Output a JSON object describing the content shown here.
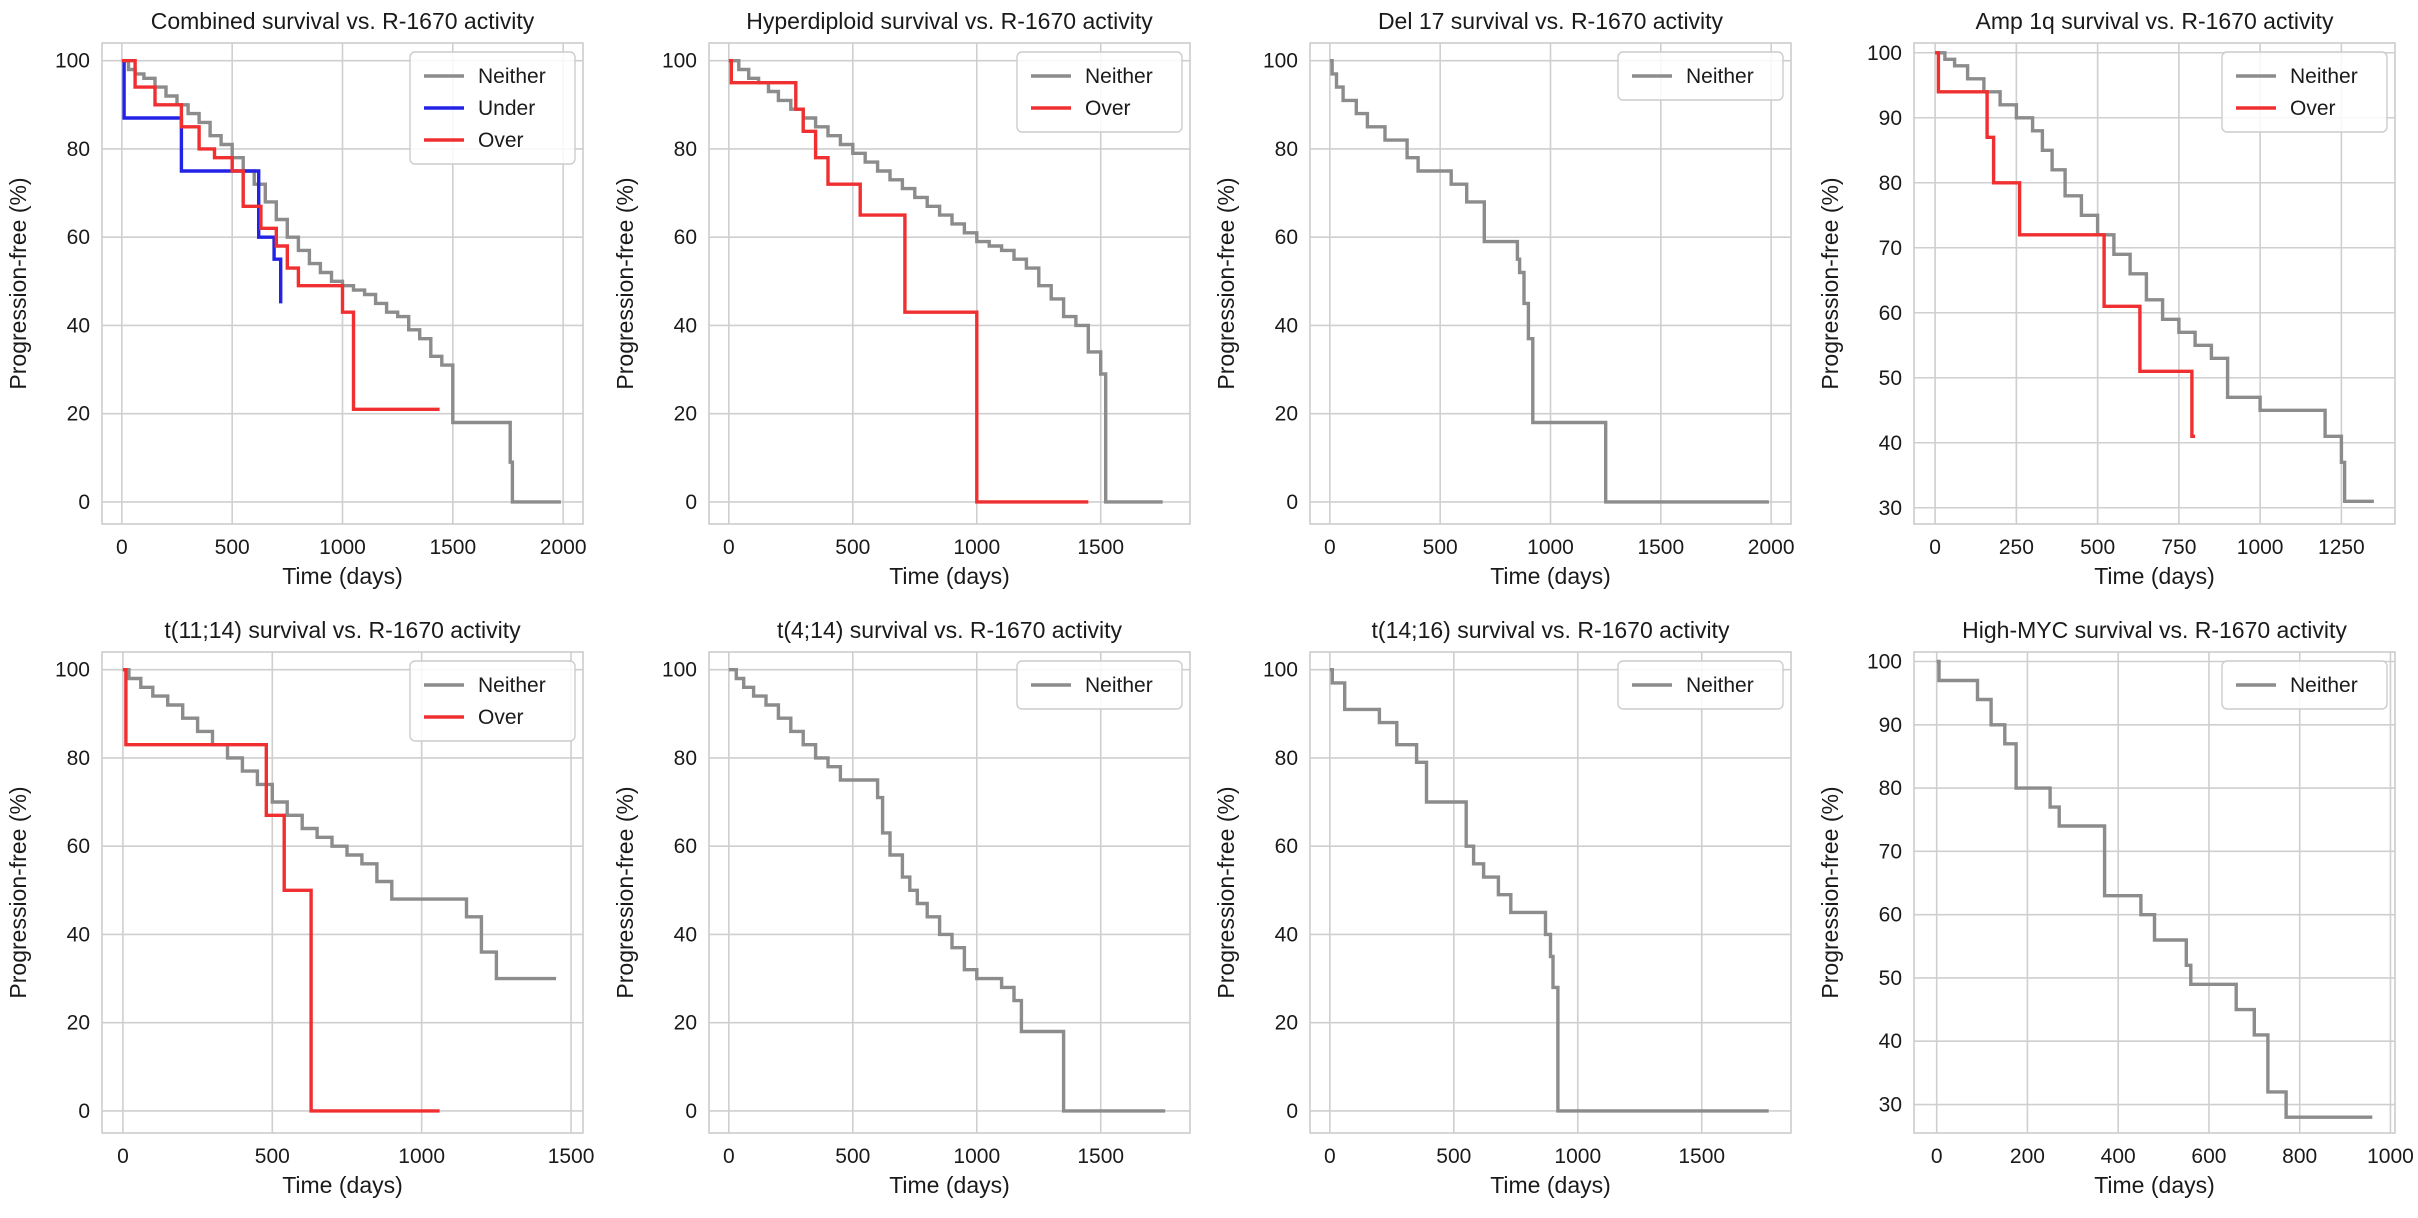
{
  "colors": {
    "Neither": "#8c8c8c",
    "Under": "#2323e6",
    "Over": "#f03030"
  },
  "chart_data": [
    {
      "type": "line",
      "title": "Combined survival vs. R-1670 activity",
      "xlabel": "Time (days)",
      "ylabel": "Progression-free (%)",
      "xlim": [
        -90,
        2090
      ],
      "ylim": [
        -5,
        104
      ],
      "xticks": [
        "0",
        "500",
        "1000",
        "1500",
        "2000"
      ],
      "xtick_values": [
        0,
        500,
        1000,
        1500,
        2000
      ],
      "yticks": [
        "0",
        "20",
        "40",
        "60",
        "80",
        "100"
      ],
      "ytick_values": [
        0,
        20,
        40,
        60,
        80,
        100
      ],
      "legend": "top-right",
      "series": [
        {
          "name": "Neither",
          "x": [
            0,
            30,
            60,
            100,
            150,
            200,
            250,
            300,
            350,
            400,
            450,
            500,
            550,
            600,
            650,
            700,
            750,
            800,
            850,
            900,
            950,
            1000,
            1050,
            1100,
            1150,
            1200,
            1250,
            1300,
            1350,
            1400,
            1450,
            1500,
            1760,
            1770,
            1990
          ],
          "y": [
            100,
            98,
            97,
            96,
            94,
            92,
            90,
            88,
            86,
            83,
            81,
            78,
            75,
            72,
            68,
            64,
            60,
            57,
            54,
            52,
            50,
            49,
            48,
            47,
            45,
            43,
            42,
            39,
            37,
            33,
            31,
            18,
            9,
            0,
            0
          ]
        },
        {
          "name": "Under",
          "x": [
            0,
            10,
            270,
            620,
            690,
            720
          ],
          "y": [
            100,
            87,
            75,
            60,
            55,
            45
          ]
        },
        {
          "name": "Over",
          "x": [
            0,
            60,
            150,
            270,
            350,
            420,
            500,
            550,
            630,
            700,
            750,
            800,
            1000,
            1050,
            1440
          ],
          "y": [
            100,
            94,
            90,
            85,
            80,
            78,
            75,
            67,
            62,
            58,
            53,
            49,
            43,
            21,
            21
          ]
        }
      ]
    },
    {
      "type": "line",
      "title": "Hyperdiploid survival vs. R-1670 activity",
      "xlabel": "Time (days)",
      "ylabel": "Progression-free (%)",
      "xlim": [
        -80,
        1860
      ],
      "ylim": [
        -5,
        104
      ],
      "xticks": [
        "0",
        "500",
        "1000",
        "1500"
      ],
      "xtick_values": [
        0,
        500,
        1000,
        1500
      ],
      "yticks": [
        "0",
        "20",
        "40",
        "60",
        "80",
        "100"
      ],
      "ytick_values": [
        0,
        20,
        40,
        60,
        80,
        100
      ],
      "legend": "top-right",
      "series": [
        {
          "name": "Neither",
          "x": [
            0,
            40,
            80,
            120,
            160,
            200,
            250,
            300,
            350,
            400,
            450,
            500,
            550,
            600,
            650,
            700,
            750,
            800,
            850,
            900,
            950,
            1000,
            1050,
            1100,
            1150,
            1200,
            1250,
            1300,
            1350,
            1400,
            1450,
            1500,
            1520,
            1750
          ],
          "y": [
            100,
            98,
            96,
            95,
            93,
            91,
            89,
            87,
            85,
            83,
            81,
            79,
            77,
            75,
            73,
            71,
            69,
            67,
            65,
            63,
            61,
            59,
            58,
            57,
            55,
            53,
            49,
            46,
            42,
            40,
            34,
            29,
            0,
            0
          ]
        },
        {
          "name": "Over",
          "x": [
            0,
            10,
            270,
            300,
            350,
            400,
            530,
            710,
            1000,
            1450
          ],
          "y": [
            100,
            95,
            89,
            84,
            78,
            72,
            65,
            43,
            0,
            0
          ]
        }
      ]
    },
    {
      "type": "line",
      "title": "Del 17 survival vs. R-1670 activity",
      "xlabel": "Time (days)",
      "ylabel": "Progression-free (%)",
      "xlim": [
        -90,
        2090
      ],
      "ylim": [
        -5,
        104
      ],
      "xticks": [
        "0",
        "500",
        "1000",
        "1500",
        "2000"
      ],
      "xtick_values": [
        0,
        500,
        1000,
        1500,
        2000
      ],
      "yticks": [
        "0",
        "20",
        "40",
        "60",
        "80",
        "100"
      ],
      "ytick_values": [
        0,
        20,
        40,
        60,
        80,
        100
      ],
      "legend": "top-right",
      "series": [
        {
          "name": "Neither",
          "x": [
            0,
            10,
            30,
            60,
            120,
            170,
            250,
            350,
            400,
            550,
            620,
            700,
            850,
            860,
            880,
            900,
            920,
            1250,
            1990
          ],
          "y": [
            100,
            97,
            94,
            91,
            88,
            85,
            82,
            78,
            75,
            72,
            68,
            59,
            55,
            52,
            45,
            37,
            18,
            0,
            0
          ]
        }
      ]
    },
    {
      "type": "line",
      "title": "Amp 1q survival vs. R-1670 activity",
      "xlabel": "Time (days)",
      "ylabel": "Progression-free (%)",
      "xlim": [
        -65,
        1415
      ],
      "ylim": [
        27.5,
        101.5
      ],
      "xticks": [
        "0",
        "250",
        "500",
        "750",
        "1000",
        "1250"
      ],
      "xtick_values": [
        0,
        250,
        500,
        750,
        1000,
        1250
      ],
      "yticks": [
        "30",
        "40",
        "50",
        "60",
        "70",
        "80",
        "90",
        "100"
      ],
      "ytick_values": [
        30,
        40,
        50,
        60,
        70,
        80,
        90,
        100
      ],
      "legend": "top-right",
      "series": [
        {
          "name": "Neither",
          "x": [
            0,
            30,
            60,
            100,
            150,
            200,
            250,
            300,
            330,
            360,
            400,
            450,
            500,
            550,
            600,
            650,
            700,
            750,
            800,
            850,
            900,
            1000,
            1050,
            1200,
            1250,
            1260,
            1350
          ],
          "y": [
            100,
            99,
            98,
            96,
            94,
            92,
            90,
            88,
            85,
            82,
            78,
            75,
            72,
            69,
            66,
            62,
            59,
            57,
            55,
            53,
            47,
            45,
            45,
            41,
            37,
            31,
            31
          ]
        },
        {
          "name": "Over",
          "x": [
            0,
            10,
            160,
            180,
            260,
            520,
            630,
            790,
            800
          ],
          "y": [
            100,
            94,
            87,
            80,
            72,
            61,
            51,
            41,
            41
          ]
        }
      ]
    },
    {
      "type": "line",
      "title": "t(11;14) survival vs. R-1670 activity",
      "xlabel": "Time (days)",
      "ylabel": "Progression-free (%)",
      "xlim": [
        -70,
        1540
      ],
      "ylim": [
        -5,
        104
      ],
      "xticks": [
        "0",
        "500",
        "1000",
        "1500"
      ],
      "xtick_values": [
        0,
        500,
        1000,
        1500
      ],
      "yticks": [
        "0",
        "20",
        "40",
        "60",
        "80",
        "100"
      ],
      "ytick_values": [
        0,
        20,
        40,
        60,
        80,
        100
      ],
      "legend": "top-right",
      "series": [
        {
          "name": "Neither",
          "x": [
            0,
            20,
            60,
            100,
            150,
            200,
            250,
            300,
            350,
            400,
            450,
            500,
            550,
            600,
            650,
            700,
            750,
            800,
            850,
            900,
            1150,
            1200,
            1250,
            1450
          ],
          "y": [
            100,
            98,
            96,
            94,
            92,
            89,
            86,
            83,
            80,
            77,
            74,
            70,
            67,
            64,
            62,
            60,
            58,
            56,
            52,
            48,
            44,
            36,
            30,
            30
          ]
        },
        {
          "name": "Over",
          "x": [
            0,
            10,
            480,
            540,
            630,
            1060
          ],
          "y": [
            100,
            83,
            67,
            50,
            0,
            0
          ]
        }
      ]
    },
    {
      "type": "line",
      "title": "t(4;14) survival vs. R-1670 activity",
      "xlabel": "Time (days)",
      "ylabel": "Progression-free (%)",
      "xlim": [
        -80,
        1860
      ],
      "ylim": [
        -5,
        104
      ],
      "xticks": [
        "0",
        "500",
        "1000",
        "1500"
      ],
      "xtick_values": [
        0,
        500,
        1000,
        1500
      ],
      "yticks": [
        "0",
        "20",
        "40",
        "60",
        "80",
        "100"
      ],
      "ytick_values": [
        0,
        20,
        40,
        60,
        80,
        100
      ],
      "legend": "top-right",
      "series": [
        {
          "name": "Neither",
          "x": [
            0,
            30,
            60,
            100,
            150,
            200,
            250,
            300,
            350,
            400,
            450,
            600,
            620,
            650,
            700,
            730,
            760,
            800,
            850,
            900,
            950,
            1000,
            1100,
            1150,
            1180,
            1350,
            1760
          ],
          "y": [
            100,
            98,
            96,
            94,
            92,
            89,
            86,
            83,
            80,
            78,
            75,
            71,
            63,
            58,
            53,
            50,
            47,
            44,
            40,
            37,
            32,
            30,
            28,
            25,
            18,
            0,
            0
          ]
        }
      ]
    },
    {
      "type": "line",
      "title": "t(14;16) survival vs. R-1670 activity",
      "xlabel": "Time (days)",
      "ylabel": "Progression-free (%)",
      "xlim": [
        -80,
        1860
      ],
      "ylim": [
        -5,
        104
      ],
      "xticks": [
        "0",
        "500",
        "1000",
        "1500"
      ],
      "xtick_values": [
        0,
        500,
        1000,
        1500
      ],
      "yticks": [
        "0",
        "20",
        "40",
        "60",
        "80",
        "100"
      ],
      "ytick_values": [
        0,
        20,
        40,
        60,
        80,
        100
      ],
      "legend": "top-right",
      "series": [
        {
          "name": "Neither",
          "x": [
            0,
            10,
            60,
            200,
            270,
            350,
            390,
            550,
            580,
            620,
            680,
            730,
            870,
            890,
            900,
            920,
            1770
          ],
          "y": [
            100,
            97,
            91,
            88,
            83,
            79,
            70,
            60,
            56,
            53,
            49,
            45,
            40,
            35,
            28,
            0,
            0
          ]
        }
      ]
    },
    {
      "type": "line",
      "title": "High-MYC survival vs. R-1670 activity",
      "xlabel": "Time (days)",
      "ylabel": "Progression-free (%)",
      "xlim": [
        -50,
        1010
      ],
      "ylim": [
        25.5,
        101.5
      ],
      "xticks": [
        "0",
        "200",
        "400",
        "600",
        "800",
        "1000"
      ],
      "xtick_values": [
        0,
        200,
        400,
        600,
        800,
        1000
      ],
      "yticks": [
        "30",
        "40",
        "50",
        "60",
        "70",
        "80",
        "90",
        "100"
      ],
      "ytick_values": [
        30,
        40,
        50,
        60,
        70,
        80,
        90,
        100
      ],
      "legend": "top-right",
      "series": [
        {
          "name": "Neither",
          "x": [
            0,
            5,
            90,
            120,
            150,
            175,
            250,
            270,
            370,
            450,
            480,
            550,
            560,
            660,
            700,
            730,
            770,
            960
          ],
          "y": [
            100,
            97,
            94,
            90,
            87,
            80,
            77,
            74,
            63,
            60,
            56,
            52,
            49,
            45,
            41,
            32,
            28,
            28
          ]
        }
      ]
    }
  ]
}
